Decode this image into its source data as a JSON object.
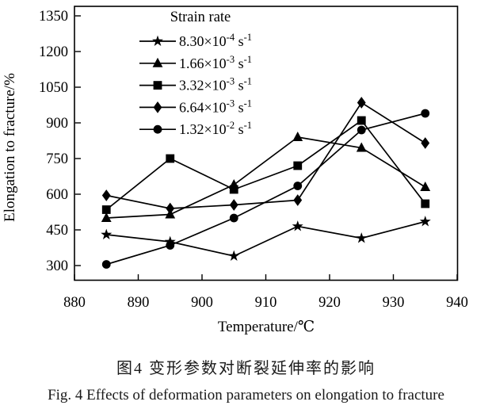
{
  "figure": {
    "caption_zh": "图4  变形参数对断裂延伸率的影响",
    "caption_en": "Fig. 4  Effects of deformation parameters on elongation to fracture"
  },
  "chart_data": {
    "type": "line",
    "title": "",
    "xlabel": "Temperature/℃",
    "ylabel": "Elongation to fracture/%",
    "xlim": [
      880,
      940
    ],
    "ylim": [
      300,
      1350
    ],
    "x_ticks": [
      880,
      890,
      900,
      910,
      920,
      930,
      940
    ],
    "y_ticks": [
      300,
      450,
      600,
      750,
      900,
      1050,
      1200,
      1350
    ],
    "grid": false,
    "legend_title": "Strain rate",
    "legend_position": "inside top-center",
    "line_color": "#000000",
    "x": [
      885,
      895,
      905,
      915,
      925,
      935
    ],
    "series": [
      {
        "name": "8.30×10⁻⁴ s⁻¹",
        "label_parts": [
          "8.30×10",
          "-4",
          " s",
          "-1"
        ],
        "marker": "star",
        "values": [
          430,
          400,
          340,
          465,
          415,
          485
        ]
      },
      {
        "name": "1.66×10⁻³ s⁻¹",
        "label_parts": [
          "1.66×10",
          "-3",
          " s",
          "-1"
        ],
        "marker": "triangle",
        "values": [
          500,
          515,
          640,
          840,
          795,
          630
        ]
      },
      {
        "name": "3.32×10⁻³ s⁻¹",
        "label_parts": [
          "3.32×10",
          "-3",
          " s",
          "-1"
        ],
        "marker": "square",
        "values": [
          535,
          750,
          620,
          720,
          910,
          560
        ]
      },
      {
        "name": "6.64×10⁻³ s⁻¹",
        "label_parts": [
          "6.64×10",
          "-3",
          " s",
          "-1"
        ],
        "marker": "diamond",
        "values": [
          595,
          540,
          555,
          575,
          985,
          815
        ]
      },
      {
        "name": "1.32×10⁻² s⁻¹",
        "label_parts": [
          "1.32×10",
          "-2",
          " s",
          "-1"
        ],
        "marker": "circle",
        "values": [
          305,
          385,
          500,
          635,
          870,
          940
        ]
      }
    ]
  }
}
